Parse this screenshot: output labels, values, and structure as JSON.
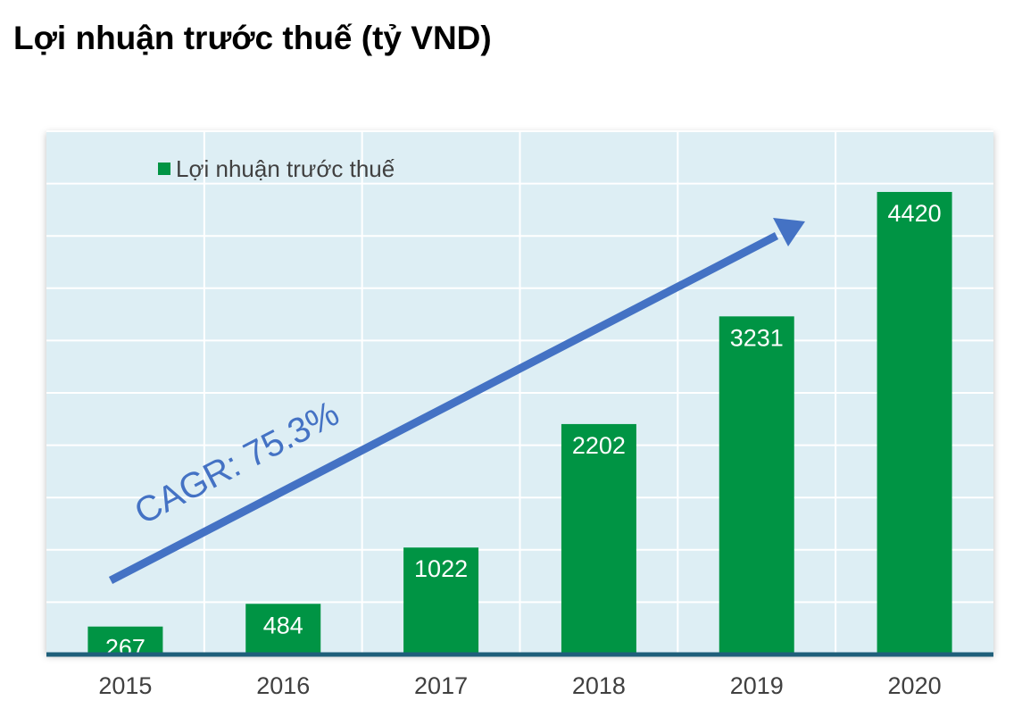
{
  "title": "Lợi nhuận trước thuế (tỷ VND)",
  "chart_data": {
    "type": "bar",
    "categories": [
      "2015",
      "2016",
      "2017",
      "2018",
      "2019",
      "2020"
    ],
    "series": [
      {
        "name": "Lợi nhuận trước thuế",
        "values": [
          267,
          484,
          1022,
          2202,
          3231,
          4420
        ]
      }
    ],
    "ylim": [
      0,
      5000
    ],
    "grid": true,
    "legend": "top-left",
    "annotation": "CAGR: 75.3%",
    "colors": {
      "bar": "#009444",
      "plot_bg": "#ddeef4",
      "grid": "#ffffff",
      "axis": "#1f5f7a",
      "arrow": "#4472c4"
    }
  }
}
